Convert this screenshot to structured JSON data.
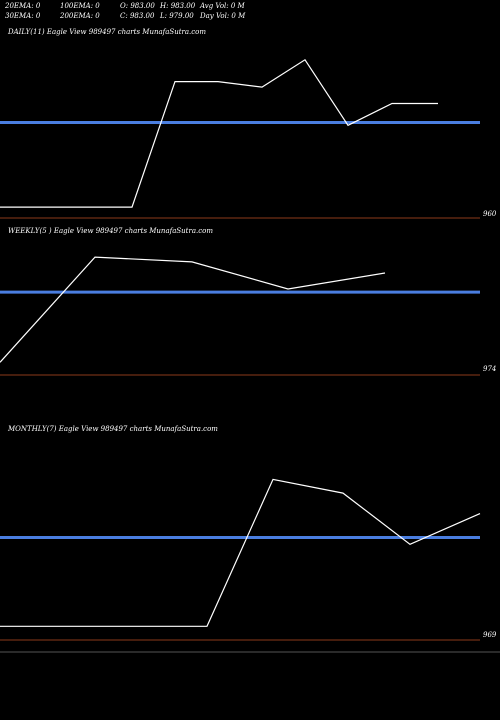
{
  "header": {
    "row1": {
      "ema20": "20EMA: 0",
      "ema100": "100EMA: 0",
      "open": "O: 983.00",
      "high": "H: 983.00",
      "avgvol": "Avg Vol: 0  M"
    },
    "row2": {
      "ema30": "30EMA: 0",
      "ema200": "200EMA: 0",
      "close": "C: 983.00",
      "low": "L: 979.00",
      "dayvol": "Day Vol: 0  M"
    }
  },
  "chart_data": [
    {
      "type": "line",
      "title": "DAILY(11) Eagle  View  989497 charts MunafaSutra.com",
      "price_label": "960",
      "colors": {
        "line": "#ffffff",
        "ema": "#4a7ee0",
        "base": "#8b3a1a"
      },
      "series": [
        {
          "values": [
            960,
            960,
            960,
            960,
            1006,
            1006,
            1004,
            1014,
            990,
            998,
            998
          ]
        }
      ],
      "reference_line": 991,
      "ylim": [
        956,
        1022
      ]
    },
    {
      "type": "line",
      "title": "WEEKLY(5                    ) Eagle  View  989497 charts MunafaSutra.com",
      "price_label": "974",
      "colors": {
        "line": "#ffffff",
        "ema": "#4a7ee0",
        "base": "#8b3a1a"
      },
      "series": [
        {
          "values": [
            940,
            1006,
            1003,
            986,
            996
          ]
        }
      ],
      "reference_line": 984,
      "ylim": [
        932,
        1018
      ]
    },
    {
      "type": "line",
      "title": "MONTHLY(7) Eagle  View  989497 charts MunafaSutra.com",
      "price_label": "969",
      "colors": {
        "line": "#ffffff",
        "ema": "#4a7ee0",
        "base": "#8b3a1a"
      },
      "series": [
        {
          "values": [
            962,
            962,
            962,
            1005,
            1001,
            986,
            995
          ]
        }
      ],
      "reference_line": 988,
      "ylim": [
        958,
        1018
      ]
    }
  ]
}
